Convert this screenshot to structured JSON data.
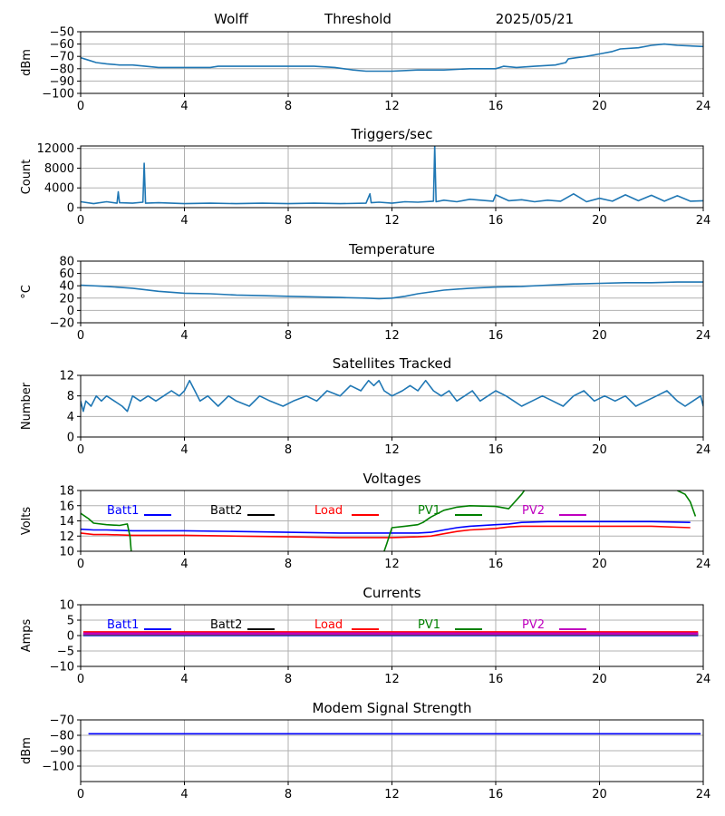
{
  "header": {
    "station": "Wolff",
    "label": "Threshold",
    "date": "2025/05/21"
  },
  "colors": {
    "default": "#1f77b4",
    "batt1": "#0000ff",
    "batt2": "#000000",
    "load": "#ff0000",
    "pv1": "#008000",
    "pv2": "#bf00bf"
  },
  "chart_data": [
    {
      "id": "threshold",
      "type": "line",
      "title": "",
      "xlabel": "",
      "ylabel": "dBm",
      "xlim": [
        0,
        24
      ],
      "xticks": [
        0,
        4,
        8,
        12,
        16,
        20,
        24
      ],
      "ylim": [
        -100,
        -50
      ],
      "yticks": [
        -100,
        -90,
        -80,
        -70,
        -60,
        -50
      ],
      "grid": true,
      "series": [
        {
          "color": "#1f77b4",
          "x": [
            0,
            0.3,
            0.6,
            1.0,
            1.5,
            2.0,
            3.0,
            4.0,
            5.0,
            5.3,
            6.0,
            7.0,
            8.0,
            9.0,
            9.8,
            10.5,
            11.0,
            12.0,
            13.0,
            14.0,
            15.0,
            16.0,
            16.3,
            16.8,
            17.5,
            18.3,
            18.7,
            18.8,
            19.5,
            20.0,
            20.5,
            20.8,
            21.5,
            22.0,
            22.5,
            23.0,
            24.0
          ],
          "y": [
            -71,
            -73,
            -75,
            -76,
            -77,
            -77,
            -79,
            -79,
            -79,
            -78,
            -78,
            -78,
            -78,
            -78,
            -79,
            -81,
            -82,
            -82,
            -81,
            -81,
            -80,
            -80,
            -78,
            -79,
            -78,
            -77,
            -75,
            -72,
            -70,
            -68,
            -66,
            -64,
            -63,
            -61,
            -60,
            -61,
            -62
          ]
        }
      ]
    },
    {
      "id": "triggers",
      "type": "line",
      "title": "Triggers/sec",
      "xlabel": "",
      "ylabel": "Count",
      "xlim": [
        0,
        24
      ],
      "xticks": [
        0,
        4,
        8,
        12,
        16,
        20,
        24
      ],
      "ylim": [
        0,
        12500
      ],
      "yticks": [
        0,
        4000,
        8000,
        12000
      ],
      "grid": true,
      "series": [
        {
          "color": "#1f77b4",
          "x": [
            0,
            0.5,
            1.0,
            1.4,
            1.45,
            1.5,
            2.0,
            2.4,
            2.45,
            2.5,
            3.0,
            4.0,
            5.0,
            6.0,
            7.0,
            8.0,
            9.0,
            10.0,
            11.0,
            11.15,
            11.2,
            11.5,
            12.0,
            12.5,
            13.0,
            13.6,
            13.65,
            13.7,
            14.0,
            14.5,
            15.0,
            15.9,
            16.0,
            16.5,
            17.0,
            17.5,
            18.0,
            18.5,
            19.0,
            19.5,
            20.0,
            20.5,
            21.0,
            21.5,
            22.0,
            22.5,
            23.0,
            23.5,
            24.0
          ],
          "y": [
            1200,
            800,
            1200,
            900,
            3200,
            1000,
            900,
            1100,
            9000,
            900,
            1000,
            800,
            900,
            800,
            900,
            800,
            900,
            800,
            900,
            2800,
            1000,
            1100,
            900,
            1200,
            1100,
            1300,
            12500,
            1200,
            1500,
            1200,
            1700,
            1300,
            2600,
            1400,
            1600,
            1200,
            1500,
            1300,
            2800,
            1200,
            1900,
            1300,
            2600,
            1400,
            2500,
            1300,
            2400,
            1300,
            1400
          ]
        }
      ]
    },
    {
      "id": "temperature",
      "type": "line",
      "title": "Temperature",
      "xlabel": "",
      "ylabel": "°C",
      "xlim": [
        0,
        24
      ],
      "xticks": [
        0,
        4,
        8,
        12,
        16,
        20,
        24
      ],
      "ylim": [
        -20,
        80
      ],
      "yticks": [
        -20,
        0,
        20,
        40,
        60,
        80
      ],
      "grid": true,
      "series": [
        {
          "color": "#1f77b4",
          "x": [
            0,
            1.0,
            2.0,
            3.0,
            4.0,
            5.0,
            6.0,
            7.0,
            8.0,
            9.0,
            10.0,
            11.0,
            11.5,
            12.0,
            12.5,
            13.0,
            13.5,
            14.0,
            15.0,
            16.0,
            17.0,
            18.0,
            19.0,
            20.0,
            21.0,
            22.0,
            23.0,
            24.0
          ],
          "y": [
            41,
            39,
            36,
            31,
            28,
            27,
            25,
            24,
            23,
            22,
            21,
            20,
            19,
            20,
            23,
            27,
            30,
            33,
            36,
            38,
            39,
            41,
            43,
            44,
            45,
            45,
            46,
            46
          ]
        }
      ]
    },
    {
      "id": "satellites",
      "type": "line",
      "title": "Satellites Tracked",
      "xlabel": "",
      "ylabel": "Number",
      "xlim": [
        0,
        24
      ],
      "xticks": [
        0,
        4,
        8,
        12,
        16,
        20,
        24
      ],
      "ylim": [
        0,
        12
      ],
      "yticks": [
        0,
        4,
        8,
        12
      ],
      "grid": true,
      "series": [
        {
          "color": "#1f77b4",
          "x": [
            0,
            0.1,
            0.2,
            0.4,
            0.6,
            0.8,
            1.0,
            1.3,
            1.6,
            1.8,
            2.0,
            2.3,
            2.6,
            2.9,
            3.2,
            3.5,
            3.8,
            4.0,
            4.2,
            4.4,
            4.6,
            4.9,
            5.3,
            5.7,
            6.0,
            6.5,
            6.9,
            7.3,
            7.8,
            8.2,
            8.7,
            9.1,
            9.5,
            10.0,
            10.4,
            10.8,
            11.1,
            11.3,
            11.5,
            11.7,
            12.0,
            12.4,
            12.7,
            13.0,
            13.3,
            13.6,
            13.9,
            14.2,
            14.5,
            14.8,
            15.1,
            15.4,
            15.7,
            16.0,
            16.4,
            16.7,
            17.0,
            17.4,
            17.8,
            18.2,
            18.6,
            19.0,
            19.4,
            19.8,
            20.2,
            20.6,
            21.0,
            21.4,
            21.8,
            22.2,
            22.6,
            23.0,
            23.3,
            23.6,
            23.9,
            24.0
          ],
          "y": [
            7,
            5,
            7,
            6,
            8,
            7,
            8,
            7,
            6,
            5,
            8,
            7,
            8,
            7,
            8,
            9,
            8,
            9,
            11,
            9,
            7,
            8,
            6,
            8,
            7,
            6,
            8,
            7,
            6,
            7,
            8,
            7,
            9,
            8,
            10,
            9,
            11,
            10,
            11,
            9,
            8,
            9,
            10,
            9,
            11,
            9,
            8,
            9,
            7,
            8,
            9,
            7,
            8,
            9,
            8,
            7,
            6,
            7,
            8,
            7,
            6,
            8,
            9,
            7,
            8,
            7,
            8,
            6,
            7,
            8,
            9,
            7,
            6,
            7,
            8,
            6
          ]
        }
      ]
    },
    {
      "id": "voltages",
      "type": "line",
      "title": "Voltages",
      "xlabel": "",
      "ylabel": "Volts",
      "xlim": [
        0,
        24
      ],
      "xticks": [
        0,
        4,
        8,
        12,
        16,
        20,
        24
      ],
      "ylim": [
        10,
        18
      ],
      "yticks": [
        10,
        12,
        14,
        16,
        18
      ],
      "grid": true,
      "legend": "top",
      "series": [
        {
          "name": "Batt1",
          "color": "#0000ff",
          "x": [
            0,
            0.5,
            1.0,
            2.0,
            4.0,
            6.0,
            8.0,
            10.0,
            12.0,
            13.0,
            13.5,
            14.0,
            14.5,
            15.0,
            16.0,
            16.5,
            17.0,
            18.0,
            20.0,
            22.0,
            23.5
          ],
          "y": [
            12.9,
            12.8,
            12.8,
            12.7,
            12.7,
            12.6,
            12.5,
            12.4,
            12.4,
            12.4,
            12.5,
            12.8,
            13.1,
            13.3,
            13.5,
            13.6,
            13.8,
            13.9,
            13.9,
            13.9,
            13.8
          ]
        },
        {
          "name": "Batt2",
          "color": "#000000",
          "x": [],
          "y": []
        },
        {
          "name": "Load",
          "color": "#ff0000",
          "x": [
            0,
            0.5,
            1.0,
            2.0,
            4.0,
            6.0,
            8.0,
            10.0,
            12.0,
            13.0,
            13.5,
            14.0,
            14.5,
            15.0,
            16.0,
            16.5,
            17.0,
            18.0,
            20.0,
            22.0,
            23.5
          ],
          "y": [
            12.4,
            12.2,
            12.2,
            12.1,
            12.1,
            12.0,
            11.9,
            11.8,
            11.8,
            11.9,
            12.0,
            12.3,
            12.6,
            12.8,
            13.0,
            13.2,
            13.3,
            13.3,
            13.3,
            13.3,
            13.1
          ]
        },
        {
          "name": "PV1",
          "color": "#008000",
          "x": [
            0,
            0.3,
            0.5,
            1.0,
            1.5,
            1.8,
            1.9,
            1.95,
            null,
            11.7,
            11.8,
            12.0,
            12.5,
            13.0,
            13.2,
            13.5,
            14.0,
            14.5,
            15.0,
            16.0,
            16.5,
            17.0,
            17.1,
            null,
            23.0,
            23.3,
            23.5,
            23.7
          ],
          "y": [
            15.0,
            14.3,
            13.7,
            13.5,
            13.4,
            13.6,
            12.0,
            10.0,
            null,
            10.0,
            11.0,
            13.1,
            13.3,
            13.5,
            13.8,
            14.5,
            15.4,
            15.8,
            16.0,
            15.9,
            15.6,
            17.5,
            18.0,
            null,
            18.0,
            17.5,
            16.5,
            14.6
          ]
        },
        {
          "name": "PV2",
          "color": "#bf00bf",
          "x": [],
          "y": []
        }
      ]
    },
    {
      "id": "currents",
      "type": "line",
      "title": "Currents",
      "xlabel": "",
      "ylabel": "Amps",
      "xlim": [
        0,
        24
      ],
      "xticks": [
        0,
        4,
        8,
        12,
        16,
        20,
        24
      ],
      "ylim": [
        -10,
        10
      ],
      "yticks": [
        -10,
        -5,
        0,
        5,
        10
      ],
      "grid": true,
      "legend": "top",
      "series": [
        {
          "name": "Batt1",
          "color": "#0000ff",
          "x": [
            0.1,
            23.8
          ],
          "y": [
            0.2,
            0.2
          ]
        },
        {
          "name": "Batt2",
          "color": "#000000",
          "x": [],
          "y": []
        },
        {
          "name": "Load",
          "color": "#ff0000",
          "x": [
            0.1,
            23.8
          ],
          "y": [
            1.0,
            1.0
          ]
        },
        {
          "name": "PV1",
          "color": "#008000",
          "x": [
            0.1,
            23.8
          ],
          "y": [
            0.4,
            0.4
          ]
        },
        {
          "name": "PV2",
          "color": "#bf00bf",
          "x": [
            0.1,
            23.8
          ],
          "y": [
            0.6,
            0.6
          ]
        }
      ]
    },
    {
      "id": "modem",
      "type": "line",
      "title": "Modem Signal Strength",
      "xlabel": "",
      "ylabel": "dBm",
      "xlim": [
        0,
        24
      ],
      "xticks": [
        0,
        4,
        8,
        12,
        16,
        20,
        24
      ],
      "ylim": [
        -110,
        -70
      ],
      "yticks": [
        -100,
        -90,
        -80,
        -70
      ],
      "grid": true,
      "series": [
        {
          "color": "#0000ff",
          "x": [
            0.3,
            23.9
          ],
          "y": [
            -79,
            -79
          ]
        }
      ]
    }
  ]
}
